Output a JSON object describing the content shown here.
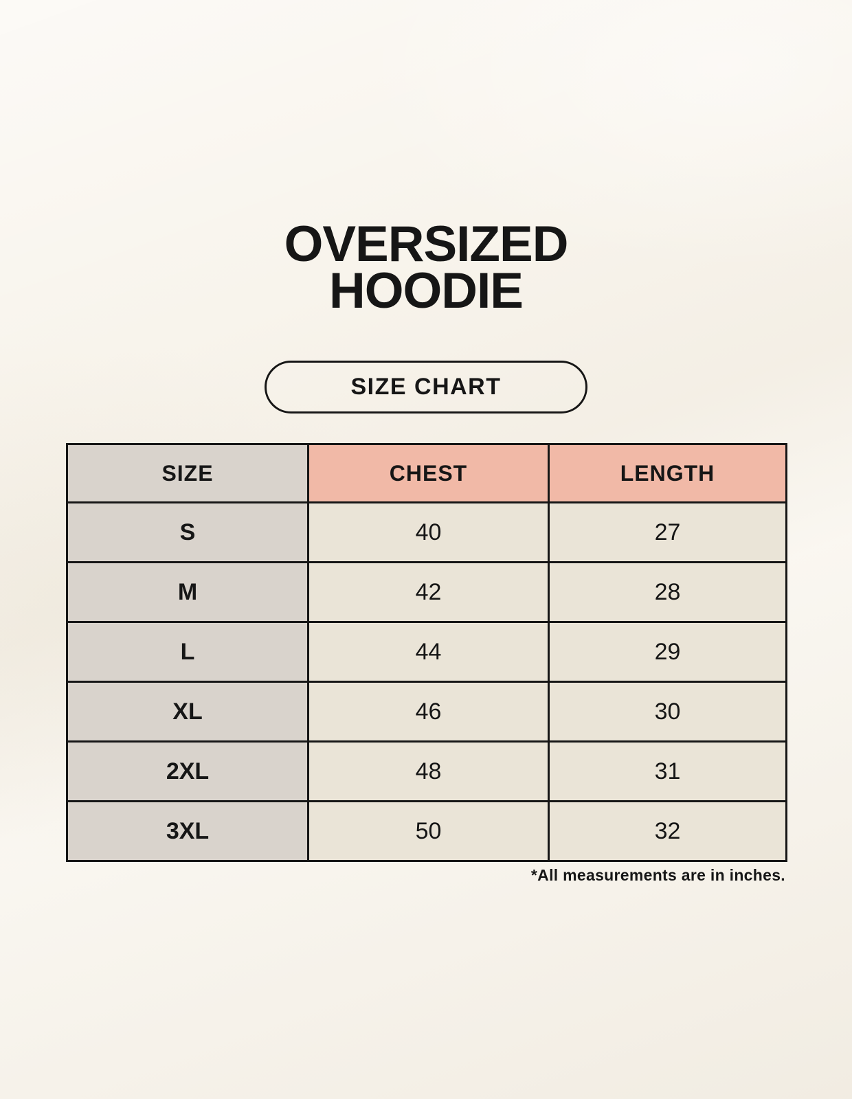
{
  "header": {
    "title_line1": "OVERSIZED",
    "title_line2": "HOODIE",
    "size_chart_label": "SIZE CHART"
  },
  "footnote": "*All measurements are in inches.",
  "chart_data": {
    "type": "table",
    "title": "OVERSIZED HOODIE",
    "subtitle": "SIZE CHART",
    "columns": [
      "SIZE",
      "CHEST",
      "LENGTH"
    ],
    "rows": [
      [
        "S",
        40,
        27
      ],
      [
        "M",
        42,
        28
      ],
      [
        "L",
        44,
        29
      ],
      [
        "XL",
        46,
        30
      ],
      [
        "2XL",
        48,
        31
      ],
      [
        "3XL",
        50,
        32
      ]
    ],
    "units": "inches",
    "annotations": [
      "*All measurements are in inches."
    ]
  },
  "colors": {
    "page_bg": "#f8f4ec",
    "size_col_bg": "#d9d3cc",
    "header_accent_bg": "#f1b9a7",
    "cell_bg": "#eae4d7",
    "border": "#161616",
    "text": "#161616"
  }
}
